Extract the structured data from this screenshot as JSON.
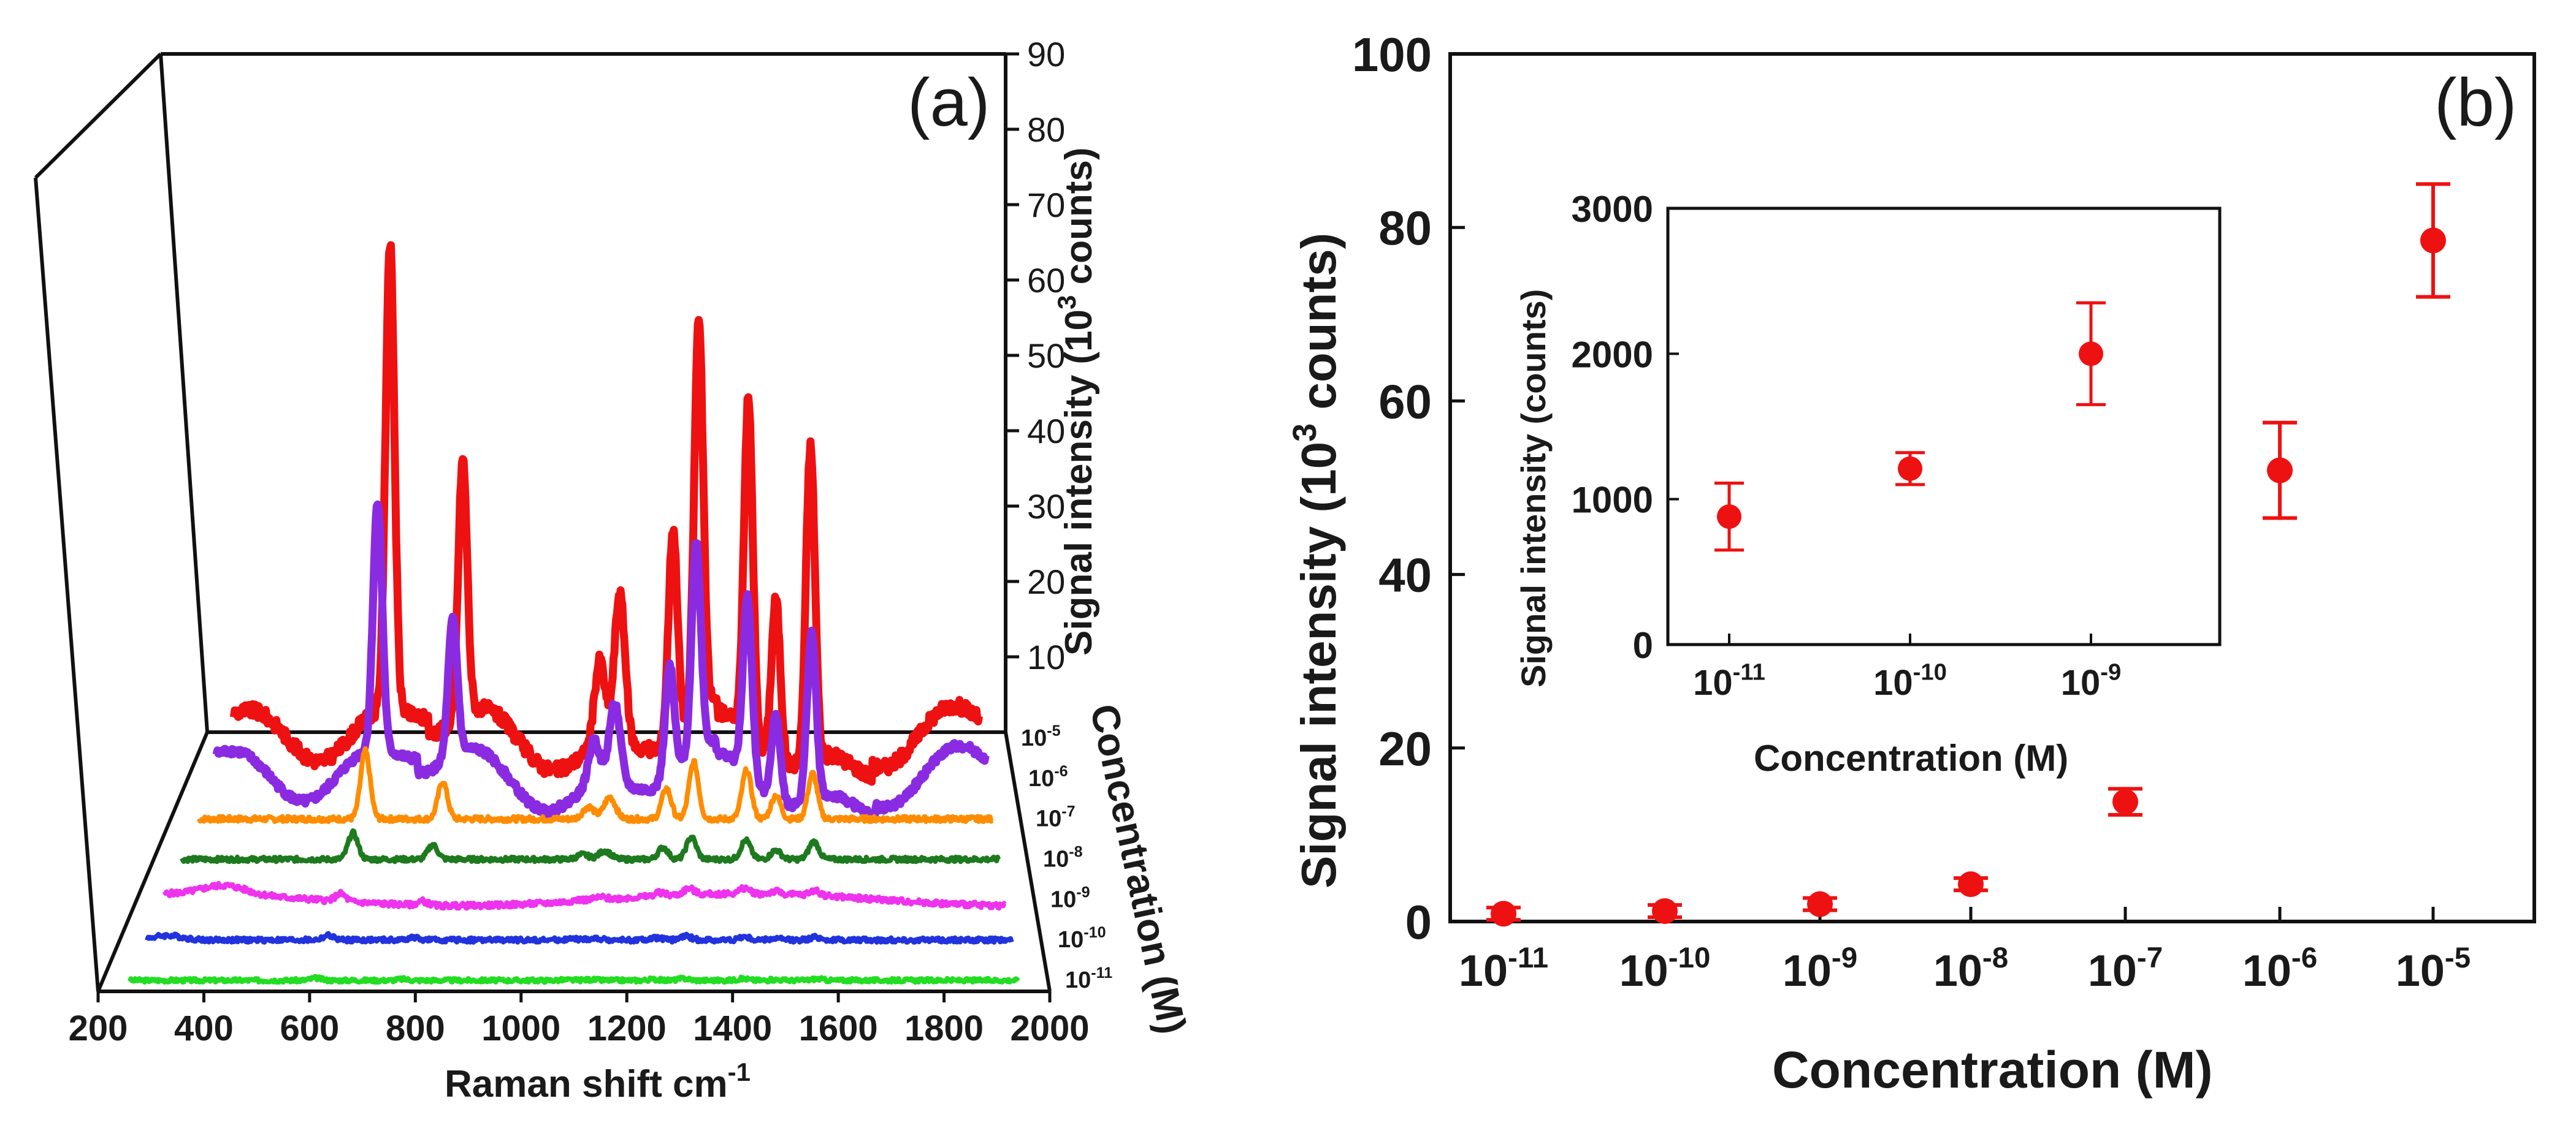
{
  "chart_data": [
    {
      "type": "line",
      "panel_label": "(a)",
      "title": "",
      "xlabel": "Raman shift  cm",
      "xlabel_sup": "-1",
      "ylabel": "Signal intensity (10",
      "ylabel_sup": "3",
      "ylabel_end": " counts)",
      "zlabel": "Concentration (M)",
      "xlim": [
        200,
        2000
      ],
      "ylim": [
        0,
        90
      ],
      "x_ticks": [
        "200",
        "400",
        "600",
        "800",
        "1000",
        "1200",
        "1400",
        "1600",
        "1800",
        "2000"
      ],
      "y_ticks": [
        "10",
        "20",
        "30",
        "40",
        "50",
        "60",
        "70",
        "80",
        "90"
      ],
      "peaks": [
        {
          "position": 612,
          "width": 10,
          "relative": 1.0
        },
        {
          "position": 776,
          "width": 10,
          "relative": 0.55
        },
        {
          "position": 1085,
          "width": 12,
          "relative": 0.18
        },
        {
          "position": 1130,
          "width": 12,
          "relative": 0.32
        },
        {
          "position": 1250,
          "width": 10,
          "relative": 0.45
        },
        {
          "position": 1308,
          "width": 10,
          "relative": 0.84
        },
        {
          "position": 1420,
          "width": 10,
          "relative": 0.72
        },
        {
          "position": 1482,
          "width": 10,
          "relative": 0.35
        },
        {
          "position": 1560,
          "width": 10,
          "relative": 0.67
        }
      ],
      "series": [
        {
          "name": "10-11",
          "base": "10",
          "exp": "-11",
          "color": "#22dd22",
          "peak_scale": 0.3,
          "noise": 0.25,
          "baseline": "flat"
        },
        {
          "name": "10-10",
          "base": "10",
          "exp": "-10",
          "color": "#2233dd",
          "peak_scale": 0.6,
          "noise": 0.3,
          "baseline": "flat"
        },
        {
          "name": "10-9",
          "base": "10",
          "exp": "-9",
          "color": "#ee33ee",
          "peak_scale": 1.0,
          "noise": 0.35,
          "baseline": "hump"
        },
        {
          "name": "10-8",
          "base": "10",
          "exp": "-8",
          "color": "#1e7a1e",
          "peak_scale": 3.5,
          "noise": 0.3,
          "baseline": "flat"
        },
        {
          "name": "10-7",
          "base": "10",
          "exp": "-7",
          "color": "#ff8c00",
          "peak_scale": 9.0,
          "noise": 0.35,
          "baseline": "flat"
        },
        {
          "name": "10-6",
          "base": "10",
          "exp": "-6",
          "color": "#8a2be2",
          "peak_scale": 33.0,
          "noise": 0.5,
          "baseline": "wavy"
        },
        {
          "name": "10-5",
          "base": "10",
          "exp": "-5",
          "color": "#ee1111",
          "peak_scale": 62.0,
          "noise": 0.9,
          "baseline": "wavy"
        }
      ]
    },
    {
      "type": "scatter",
      "panel_label": "(b)",
      "title": "",
      "xlabel": "Concentration (M)",
      "ylabel": "Signal intensity (10",
      "ylabel_sup": "3",
      "ylabel_end": " counts)",
      "ylim": [
        0,
        100
      ],
      "y_ticks": [
        "0",
        "20",
        "40",
        "60",
        "80",
        "100"
      ],
      "color": "#ee1111",
      "points": [
        {
          "base": "10",
          "exp": "-11",
          "value": 0.9,
          "err": 0.25
        },
        {
          "base": "10",
          "exp": "-10",
          "value": 1.2,
          "err": 0.2
        },
        {
          "base": "10",
          "exp": "-9",
          "value": 2.0,
          "err": 0.4
        },
        {
          "base": "10",
          "exp": "-8",
          "value": 4.3,
          "err": 0.6
        },
        {
          "base": "10",
          "exp": "-7",
          "value": 13.8,
          "err": 1.5
        },
        {
          "base": "10",
          "exp": "-6",
          "value": 52.0,
          "err": 5.5
        },
        {
          "base": "10",
          "exp": "-5",
          "value": 78.5,
          "err": 6.5
        }
      ]
    },
    {
      "type": "scatter",
      "panel_label": "inset",
      "title": "",
      "xlabel": "Concentration (M)",
      "ylabel": "Signal intensity (counts)",
      "ylim": [
        0,
        3000
      ],
      "y_ticks": [
        "0",
        "1000",
        "2000",
        "3000"
      ],
      "color": "#ee1111",
      "points": [
        {
          "base": "10",
          "exp": "-11",
          "value": 880,
          "err": 230
        },
        {
          "base": "10",
          "exp": "-10",
          "value": 1210,
          "err": 110
        },
        {
          "base": "10",
          "exp": "-9",
          "value": 2000,
          "err": 350
        }
      ]
    }
  ]
}
